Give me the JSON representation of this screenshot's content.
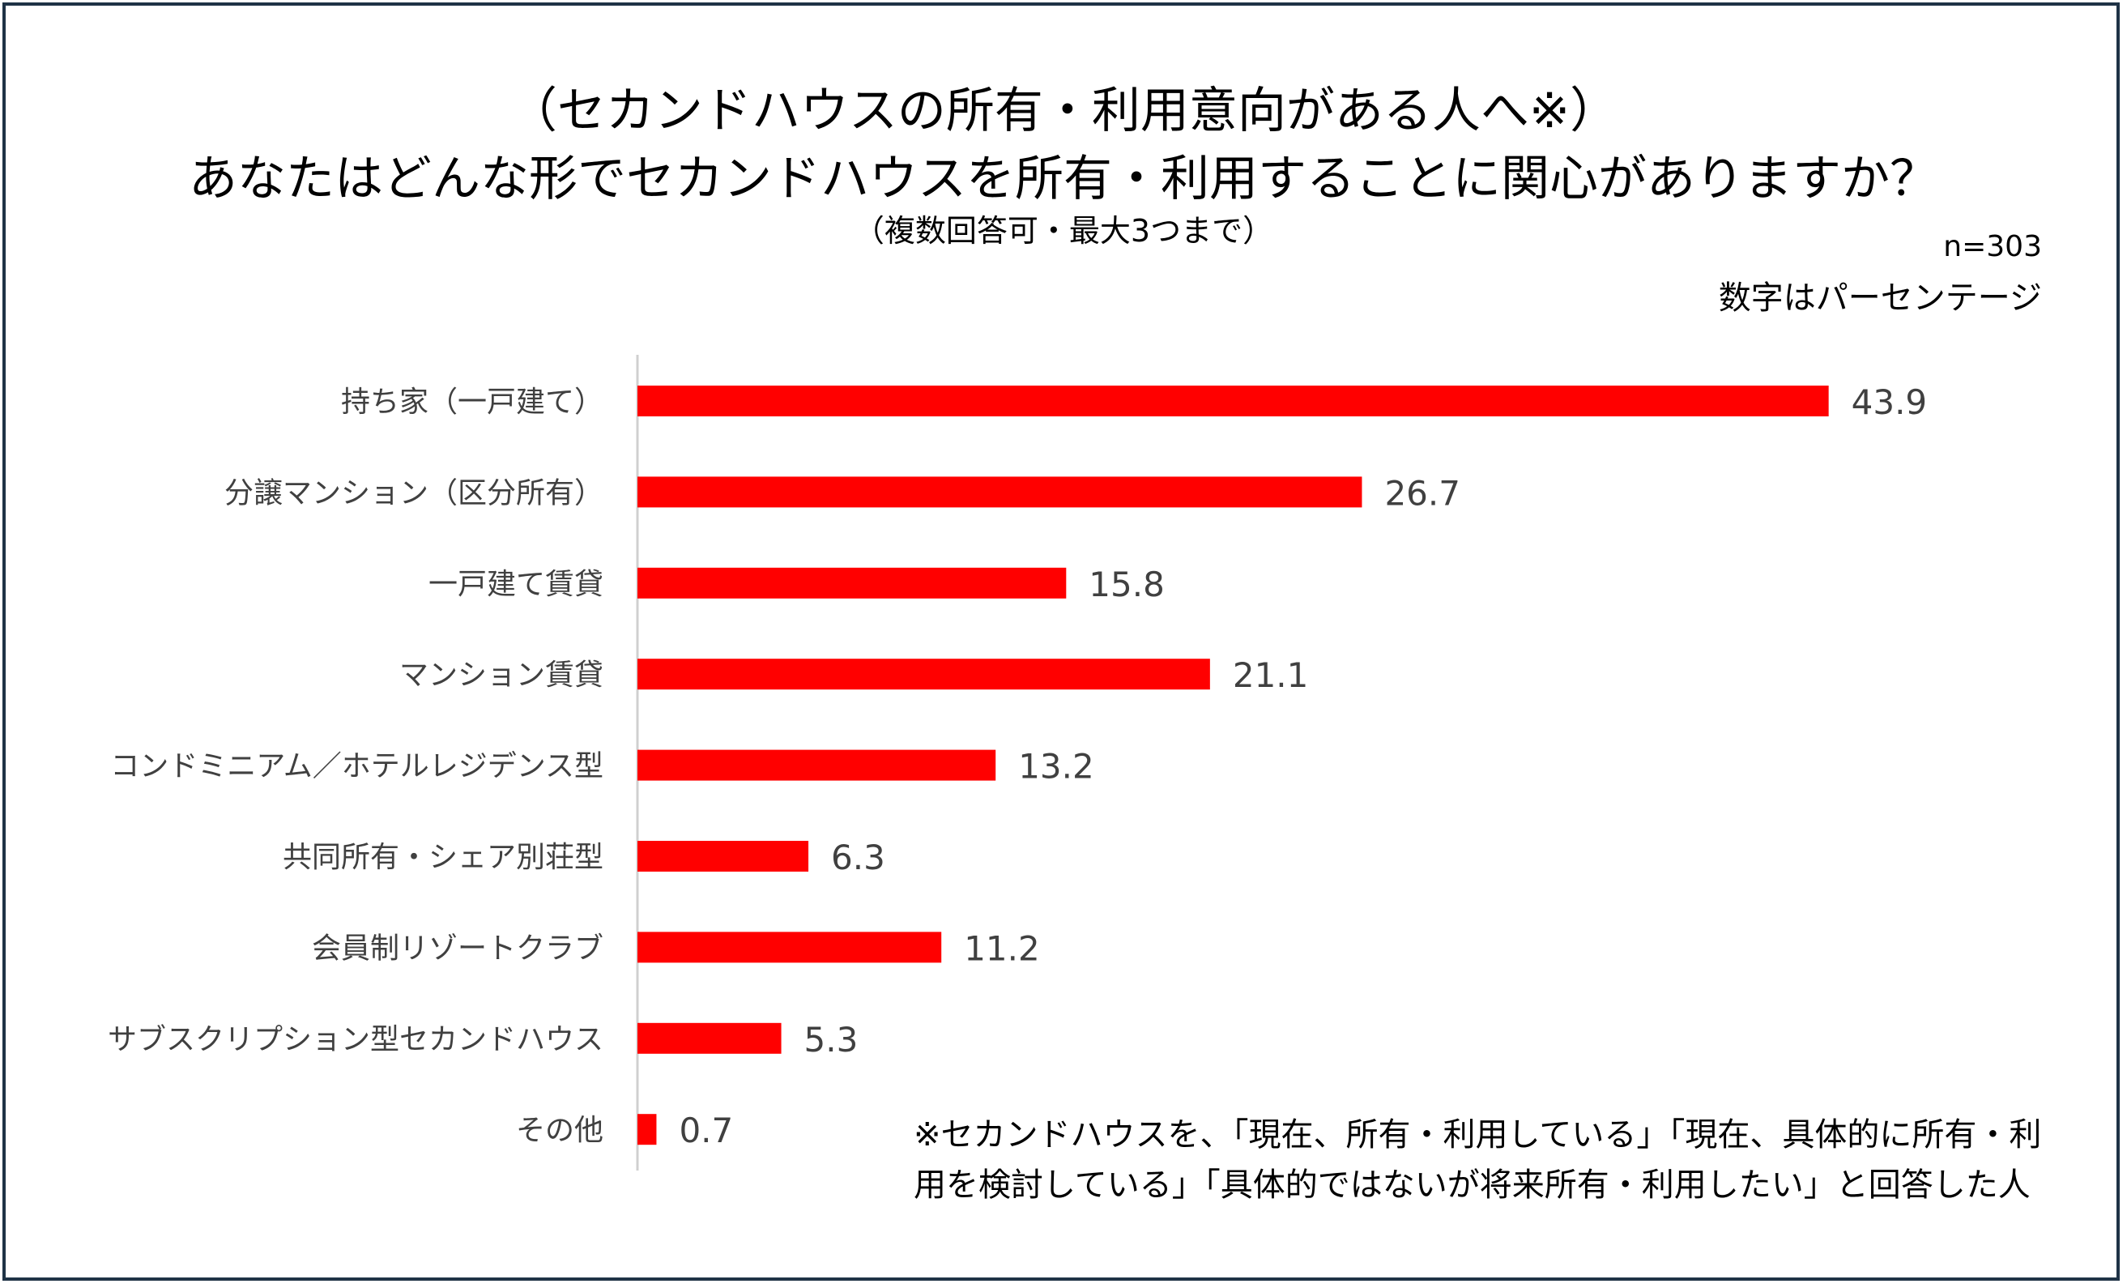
{
  "header": {
    "title_line1": "（セカンドハウスの所有・利用意向がある人へ※）",
    "title_line2": "あなたはどんな形でセカンドハウスを所有・利用することに関心がありますか？",
    "subtitle": "（複数回答可・最大3つまで）",
    "sample_size": "n=303",
    "unit_note": "数字はパーセンテージ"
  },
  "footnote": {
    "line1": "※セカンドハウスを、「現在、所有・利用している」「現在、具体的に所有・利",
    "line2": "用を検討している」「具体的ではないが将来所有・利用したい」と回答した人"
  },
  "colors": {
    "bar": "#ff0000",
    "axis": "#d0d0d0",
    "frame": "#1f3346"
  },
  "chart_data": {
    "type": "bar",
    "orientation": "horizontal",
    "categories": [
      "持ち家（一戸建て）",
      "分譲マンション（区分所有）",
      "一戸建て賃貸",
      "マンション賃貸",
      "コンドミニアム／ホテルレジデンス型",
      "共同所有・シェア別荘型",
      "会員制リゾートクラブ",
      "サブスクリプション型セカンドハウス",
      "その他"
    ],
    "values": [
      43.9,
      26.7,
      15.8,
      21.1,
      13.2,
      6.3,
      11.2,
      5.3,
      0.7
    ],
    "value_labels": [
      "43.9",
      "26.7",
      "15.8",
      "21.1",
      "13.2",
      "6.3",
      "11.2",
      "5.3",
      "0.7"
    ],
    "xlim": [
      0,
      50
    ],
    "grid": false,
    "legend": "none"
  }
}
